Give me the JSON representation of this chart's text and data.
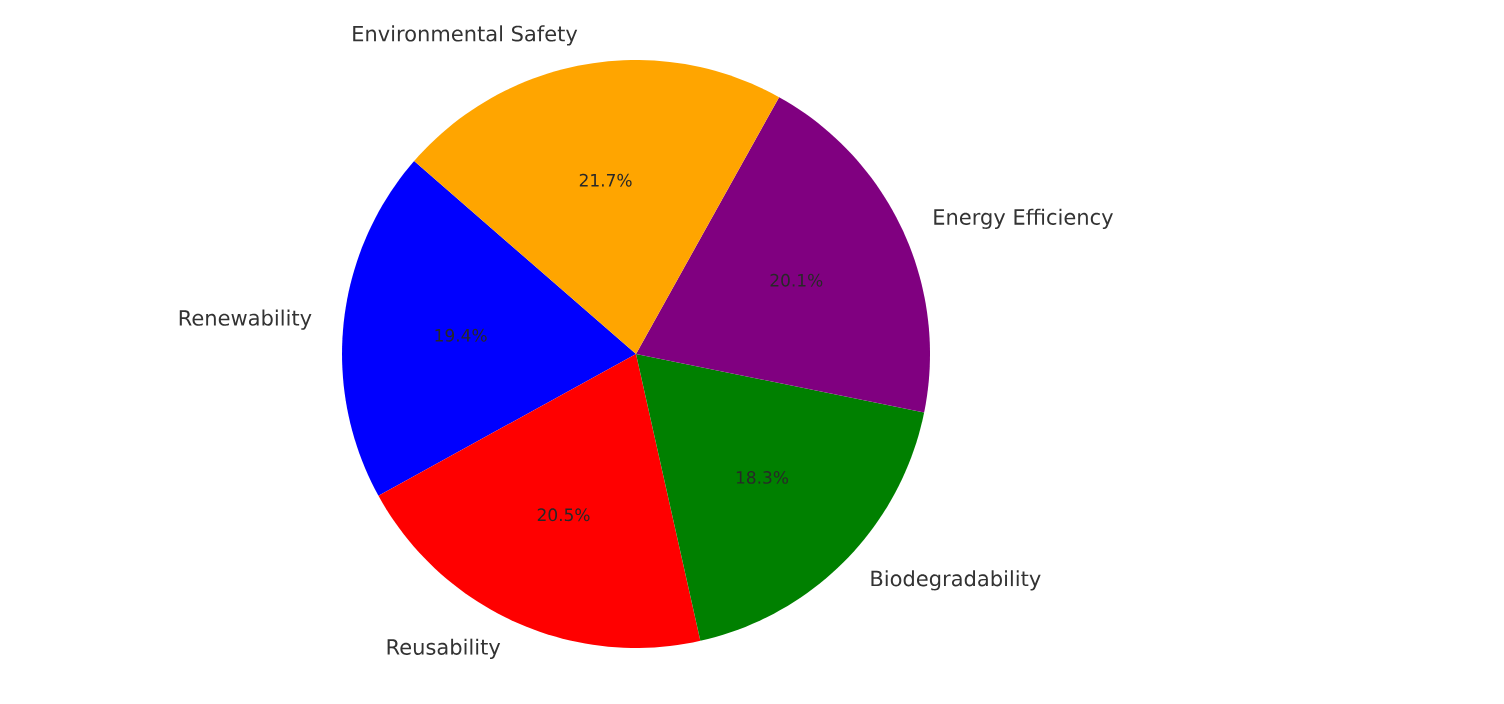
{
  "chart_data": {
    "type": "pie",
    "categories": [
      "Renewability",
      "Reusability",
      "Biodegradability",
      "Energy Efficiency",
      "Environmental Safety"
    ],
    "values": [
      19.4,
      20.5,
      18.3,
      20.1,
      21.7
    ],
    "colors": [
      "#0000ff",
      "#ff0000",
      "#008000",
      "#800080",
      "#ffa500"
    ],
    "value_labels": [
      "19.4%",
      "20.5%",
      "18.3%",
      "20.1%",
      "21.7%"
    ]
  }
}
